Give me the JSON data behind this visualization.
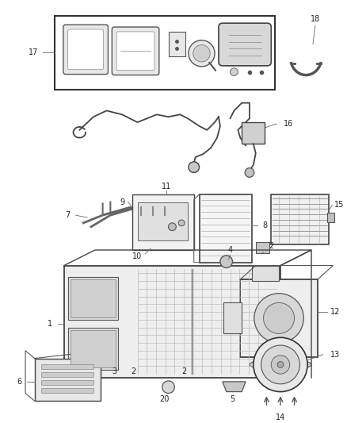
{
  "background_color": "#ffffff",
  "figsize": [
    4.38,
    5.33
  ],
  "dpi": 100,
  "line_color": "#4a4a4a",
  "label_fontsize": 6.5,
  "leader_color": "#666666"
}
